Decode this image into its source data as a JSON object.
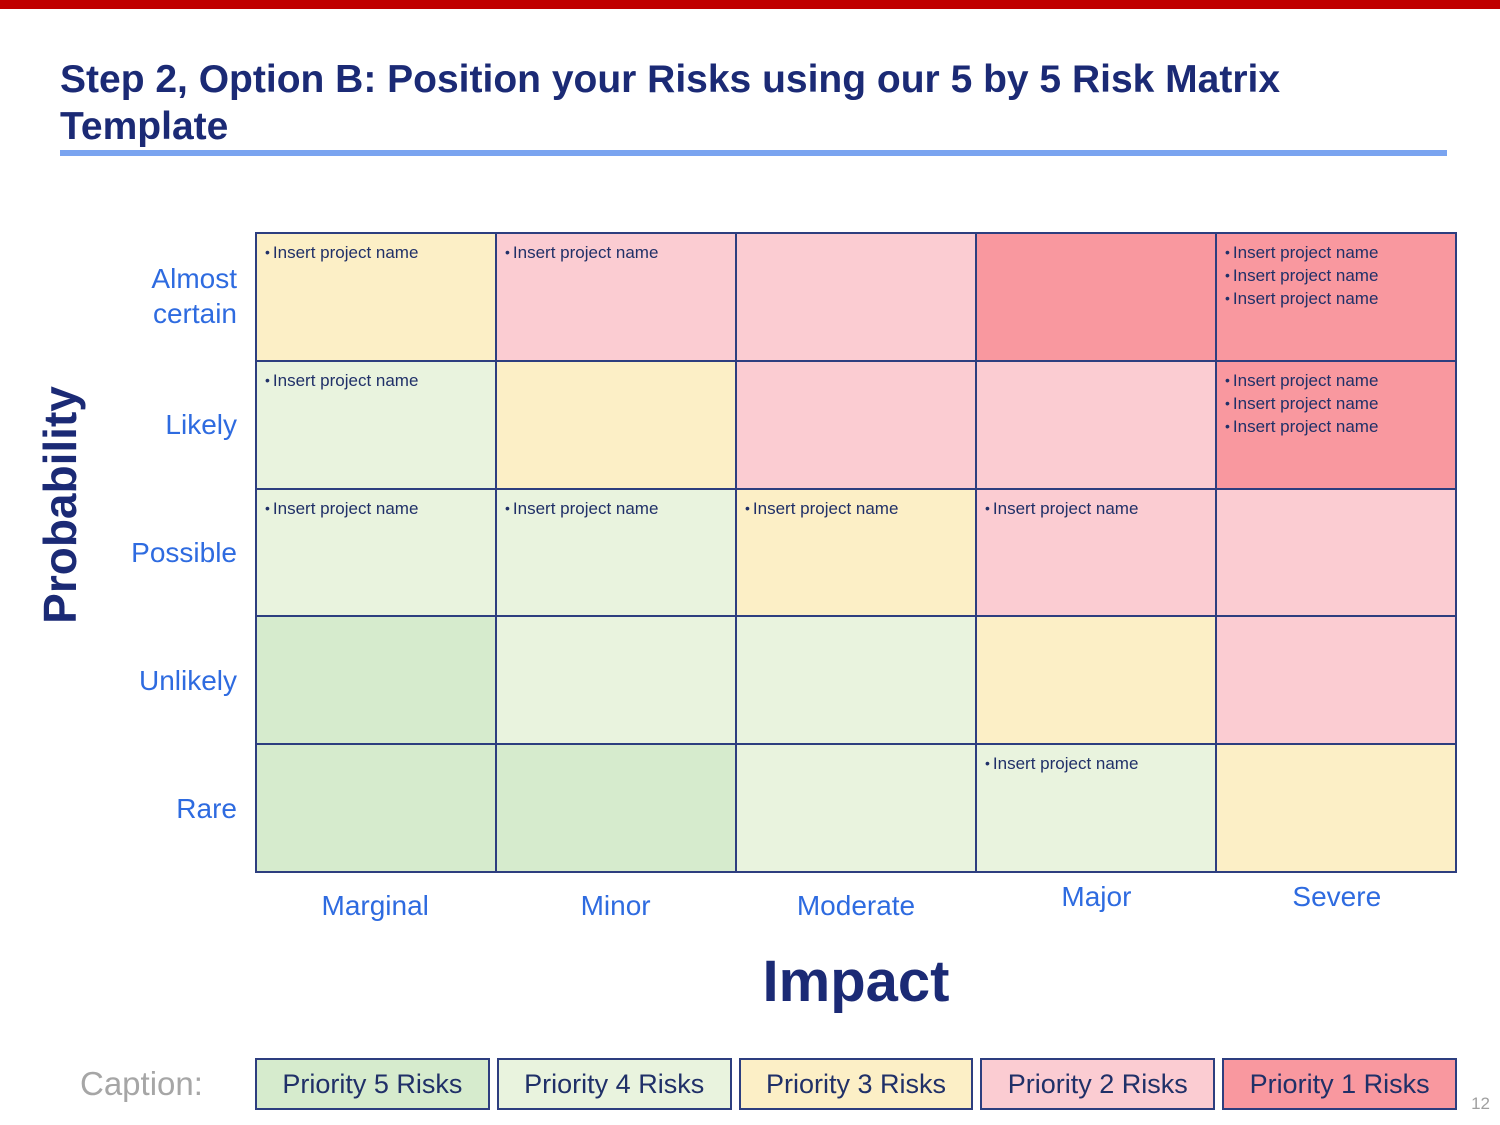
{
  "title": {
    "line1": "Step 2, Option B: Position your Risks using our 5 by 5 Risk Matrix",
    "line2": "Template"
  },
  "colors": {
    "top_bar": "#C00000",
    "heading_navy": "#1B2A75",
    "cell_text_navy": "#203068",
    "grid_border": "#2D3E7F",
    "underline_blue": "#7AA4F0",
    "tick_label_blue": "#2E6BE0",
    "caption_gray": "#A6A6A6",
    "page_number_gray": "#A0A0A0",
    "priority1": "#F9989F",
    "priority2": "#FBCCD2",
    "priority3": "#FCEFC6",
    "priority4": "#E9F3DE",
    "priority5": "#D6EBCD"
  },
  "axes": {
    "y_label": "Probability",
    "x_label": "Impact",
    "row_labels": [
      "Almost certain",
      "Likely",
      "Possible",
      "Unlikely",
      "Rare"
    ],
    "col_labels": [
      "Marginal",
      "Minor",
      "Moderate",
      "Major",
      "Severe"
    ]
  },
  "matrix": {
    "bullet_char": "•",
    "rows": [
      [
        {
          "priority": 3,
          "items": [
            "Insert project name"
          ]
        },
        {
          "priority": 2,
          "items": [
            "Insert project name"
          ]
        },
        {
          "priority": 2,
          "items": []
        },
        {
          "priority": 1,
          "items": []
        },
        {
          "priority": 1,
          "items": [
            "Insert project name",
            "Insert project name",
            "Insert project name"
          ]
        }
      ],
      [
        {
          "priority": 4,
          "items": [
            "Insert project name"
          ]
        },
        {
          "priority": 3,
          "items": []
        },
        {
          "priority": 2,
          "items": []
        },
        {
          "priority": 2,
          "items": []
        },
        {
          "priority": 1,
          "items": [
            "Insert project name",
            "Insert project name",
            "Insert project name"
          ]
        }
      ],
      [
        {
          "priority": 4,
          "items": [
            "Insert project name"
          ]
        },
        {
          "priority": 4,
          "items": [
            "Insert project name"
          ]
        },
        {
          "priority": 3,
          "items": [
            "Insert project name"
          ]
        },
        {
          "priority": 2,
          "items": [
            "Insert project name"
          ]
        },
        {
          "priority": 2,
          "items": []
        }
      ],
      [
        {
          "priority": 5,
          "items": []
        },
        {
          "priority": 4,
          "items": []
        },
        {
          "priority": 4,
          "items": []
        },
        {
          "priority": 3,
          "items": []
        },
        {
          "priority": 2,
          "items": []
        }
      ],
      [
        {
          "priority": 5,
          "items": []
        },
        {
          "priority": 5,
          "items": []
        },
        {
          "priority": 4,
          "items": []
        },
        {
          "priority": 4,
          "items": [
            "Insert project name"
          ]
        },
        {
          "priority": 3,
          "items": []
        }
      ]
    ]
  },
  "caption": {
    "label": "Caption:",
    "boxes": [
      {
        "text": "Priority 5 Risks",
        "priority": 5
      },
      {
        "text": "Priority 4 Risks",
        "priority": 4
      },
      {
        "text": "Priority 3 Risks",
        "priority": 3
      },
      {
        "text": "Priority 2 Risks",
        "priority": 2
      },
      {
        "text": "Priority 1 Risks",
        "priority": 1
      }
    ]
  },
  "page": {
    "number": "12"
  }
}
